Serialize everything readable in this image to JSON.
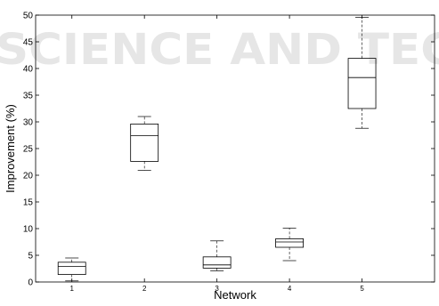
{
  "watermark": {
    "line1": "SCIENCE AND TEC",
    "color": "#e6e6e6"
  },
  "chart_data": {
    "type": "boxplot",
    "title": "",
    "xlabel": "Network",
    "ylabel": "Improvement (%)",
    "ylim": [
      0,
      50
    ],
    "yticks": [
      0,
      5,
      10,
      15,
      20,
      25,
      30,
      35,
      40,
      45,
      50
    ],
    "categories": [
      "1",
      "2",
      "3",
      "4",
      "5"
    ],
    "boxes": [
      {
        "category": "1",
        "whisker_low": 0.2,
        "q1": 1.4,
        "median": 2.9,
        "q3": 3.7,
        "whisker_high": 4.5
      },
      {
        "category": "2",
        "whisker_low": 20.9,
        "q1": 22.6,
        "median": 27.4,
        "q3": 29.6,
        "whisker_high": 31.0
      },
      {
        "category": "3",
        "whisker_low": 2.1,
        "q1": 2.6,
        "median": 3.2,
        "q3": 4.7,
        "whisker_high": 7.7
      },
      {
        "category": "4",
        "whisker_low": 4.0,
        "q1": 6.5,
        "median": 7.5,
        "q3": 8.1,
        "whisker_high": 10.1
      },
      {
        "category": "5",
        "whisker_low": 28.8,
        "q1": 32.5,
        "median": 38.3,
        "q3": 41.9,
        "whisker_high": 49.6
      }
    ],
    "grid": false,
    "colors": {
      "box": "#000000",
      "median": "#000000",
      "whisker": "#000000"
    }
  }
}
